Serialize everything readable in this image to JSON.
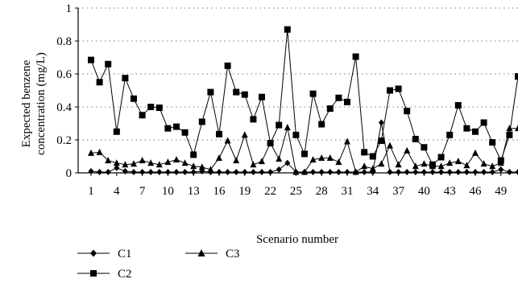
{
  "chart_data": {
    "type": "line",
    "title": "",
    "xlabel": "Scenario number",
    "ylabel_lines": [
      "Expected benzene",
      "concentration (mg/L)"
    ],
    "ylim": [
      0,
      1
    ],
    "yticks": [
      "0",
      "0.2",
      "0.4",
      "0.6",
      "0.8",
      "1"
    ],
    "xlim": [
      1,
      51
    ],
    "xticks": [
      "1",
      "4",
      "7",
      "10",
      "13",
      "16",
      "19",
      "22",
      "25",
      "28",
      "31",
      "34",
      "37",
      "40",
      "43",
      "46",
      "49"
    ],
    "grid": "horizontal dotted",
    "legend_placement": "bottom-left",
    "x": [
      1,
      2,
      3,
      4,
      5,
      6,
      7,
      8,
      9,
      10,
      11,
      12,
      13,
      14,
      15,
      16,
      17,
      18,
      19,
      20,
      21,
      22,
      23,
      24,
      25,
      26,
      27,
      28,
      29,
      30,
      31,
      32,
      33,
      34,
      35,
      36,
      37,
      38,
      39,
      40,
      41,
      42,
      43,
      44,
      45,
      46,
      47,
      48,
      49,
      50,
      51
    ],
    "series": [
      {
        "name": "C1",
        "marker": "diamond",
        "values": [
          0.01,
          0.005,
          0.005,
          0.03,
          0.01,
          0.005,
          0.005,
          0.005,
          0.005,
          0.005,
          0.005,
          0.005,
          0.005,
          0.01,
          0.005,
          0.005,
          0.005,
          0.005,
          0.005,
          0.005,
          0.005,
          0.005,
          0.02,
          0.06,
          0.005,
          0.005,
          0.005,
          0.005,
          0.005,
          0.005,
          0.005,
          0.005,
          0.005,
          0.005,
          0.305,
          0.005,
          0.005,
          0.005,
          0.005,
          0.005,
          0.005,
          0.005,
          0.005,
          0.005,
          0.005,
          0.005,
          0.005,
          0.005,
          0.02,
          0.005,
          0.005
        ]
      },
      {
        "name": "C2",
        "marker": "square",
        "values": [
          0.685,
          0.55,
          0.66,
          0.25,
          0.575,
          0.45,
          0.35,
          0.4,
          0.395,
          0.27,
          0.28,
          0.245,
          0.11,
          0.31,
          0.49,
          0.235,
          0.65,
          0.49,
          0.475,
          0.325,
          0.46,
          0.18,
          0.29,
          0.87,
          0.23,
          0.115,
          0.48,
          0.295,
          0.39,
          0.455,
          0.43,
          0.705,
          0.125,
          0.1,
          0.195,
          0.5,
          0.51,
          0.375,
          0.205,
          0.155,
          0.05,
          0.095,
          0.23,
          0.41,
          0.27,
          0.25,
          0.305,
          0.185,
          0.075,
          0.23,
          0.585
        ]
      },
      {
        "name": "C3",
        "marker": "triangle",
        "values": [
          0.12,
          0.125,
          0.075,
          0.06,
          0.05,
          0.055,
          0.075,
          0.06,
          0.05,
          0.065,
          0.08,
          0.06,
          0.04,
          0.035,
          0.02,
          0.09,
          0.195,
          0.075,
          0.23,
          0.05,
          0.07,
          0.18,
          0.085,
          0.275,
          0.005,
          0.005,
          0.08,
          0.09,
          0.09,
          0.065,
          0.19,
          0.005,
          0.04,
          0.025,
          0.055,
          0.165,
          0.05,
          0.135,
          0.04,
          0.055,
          0.04,
          0.04,
          0.06,
          0.07,
          0.045,
          0.12,
          0.055,
          0.04,
          0.06,
          0.27,
          0.27
        ]
      }
    ]
  }
}
